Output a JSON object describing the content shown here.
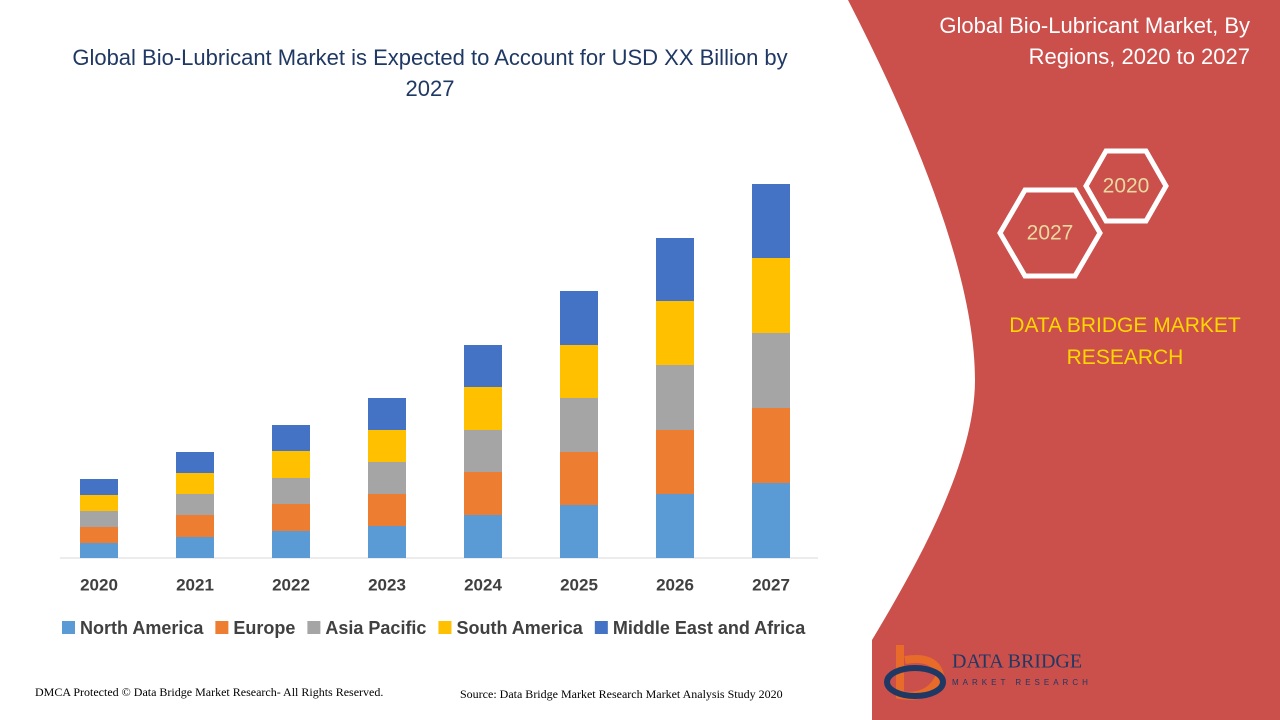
{
  "chart_data": {
    "type": "stacked-bar",
    "title": "Global Bio-Lubricant Market is Expected to Account for USD XX Billion by 2027",
    "categories": [
      "2020",
      "2021",
      "2022",
      "2023",
      "2024",
      "2025",
      "2026",
      "2027"
    ],
    "series": [
      {
        "name": "North America",
        "color": "#5b9bd5",
        "values": [
          15,
          21,
          27,
          32,
          43,
          53,
          64,
          75
        ]
      },
      {
        "name": "Europe",
        "color": "#ed7d31",
        "values": [
          16,
          22,
          27,
          32,
          43,
          53,
          64,
          75
        ]
      },
      {
        "name": "Asia Pacific",
        "color": "#a5a5a5",
        "values": [
          16,
          21,
          26,
          32,
          42,
          54,
          65,
          75
        ]
      },
      {
        "name": "South America",
        "color": "#ffc000",
        "values": [
          16,
          21,
          27,
          32,
          43,
          53,
          64,
          75
        ]
      },
      {
        "name": "Middle East and Africa",
        "color": "#4472c4",
        "values": [
          16,
          21,
          26,
          32,
          42,
          54,
          63,
          74
        ]
      }
    ],
    "legend": "bottom"
  },
  "panel": {
    "title": "Global Bio-Lubricant Market, By Regions, 2020 to 2027",
    "hex_small": "2020",
    "hex_large": "2027",
    "brand": "DATA BRIDGE MARKET RESEARCH"
  },
  "logo": {
    "name": "DATA BRIDGE",
    "tagline": "MARKET RESEARCH"
  },
  "footer": {
    "left": "DMCA Protected © Data Bridge Market Research- All Rights Reserved.",
    "source": "Source: Data Bridge Market Research Market Analysis Study 2020"
  }
}
